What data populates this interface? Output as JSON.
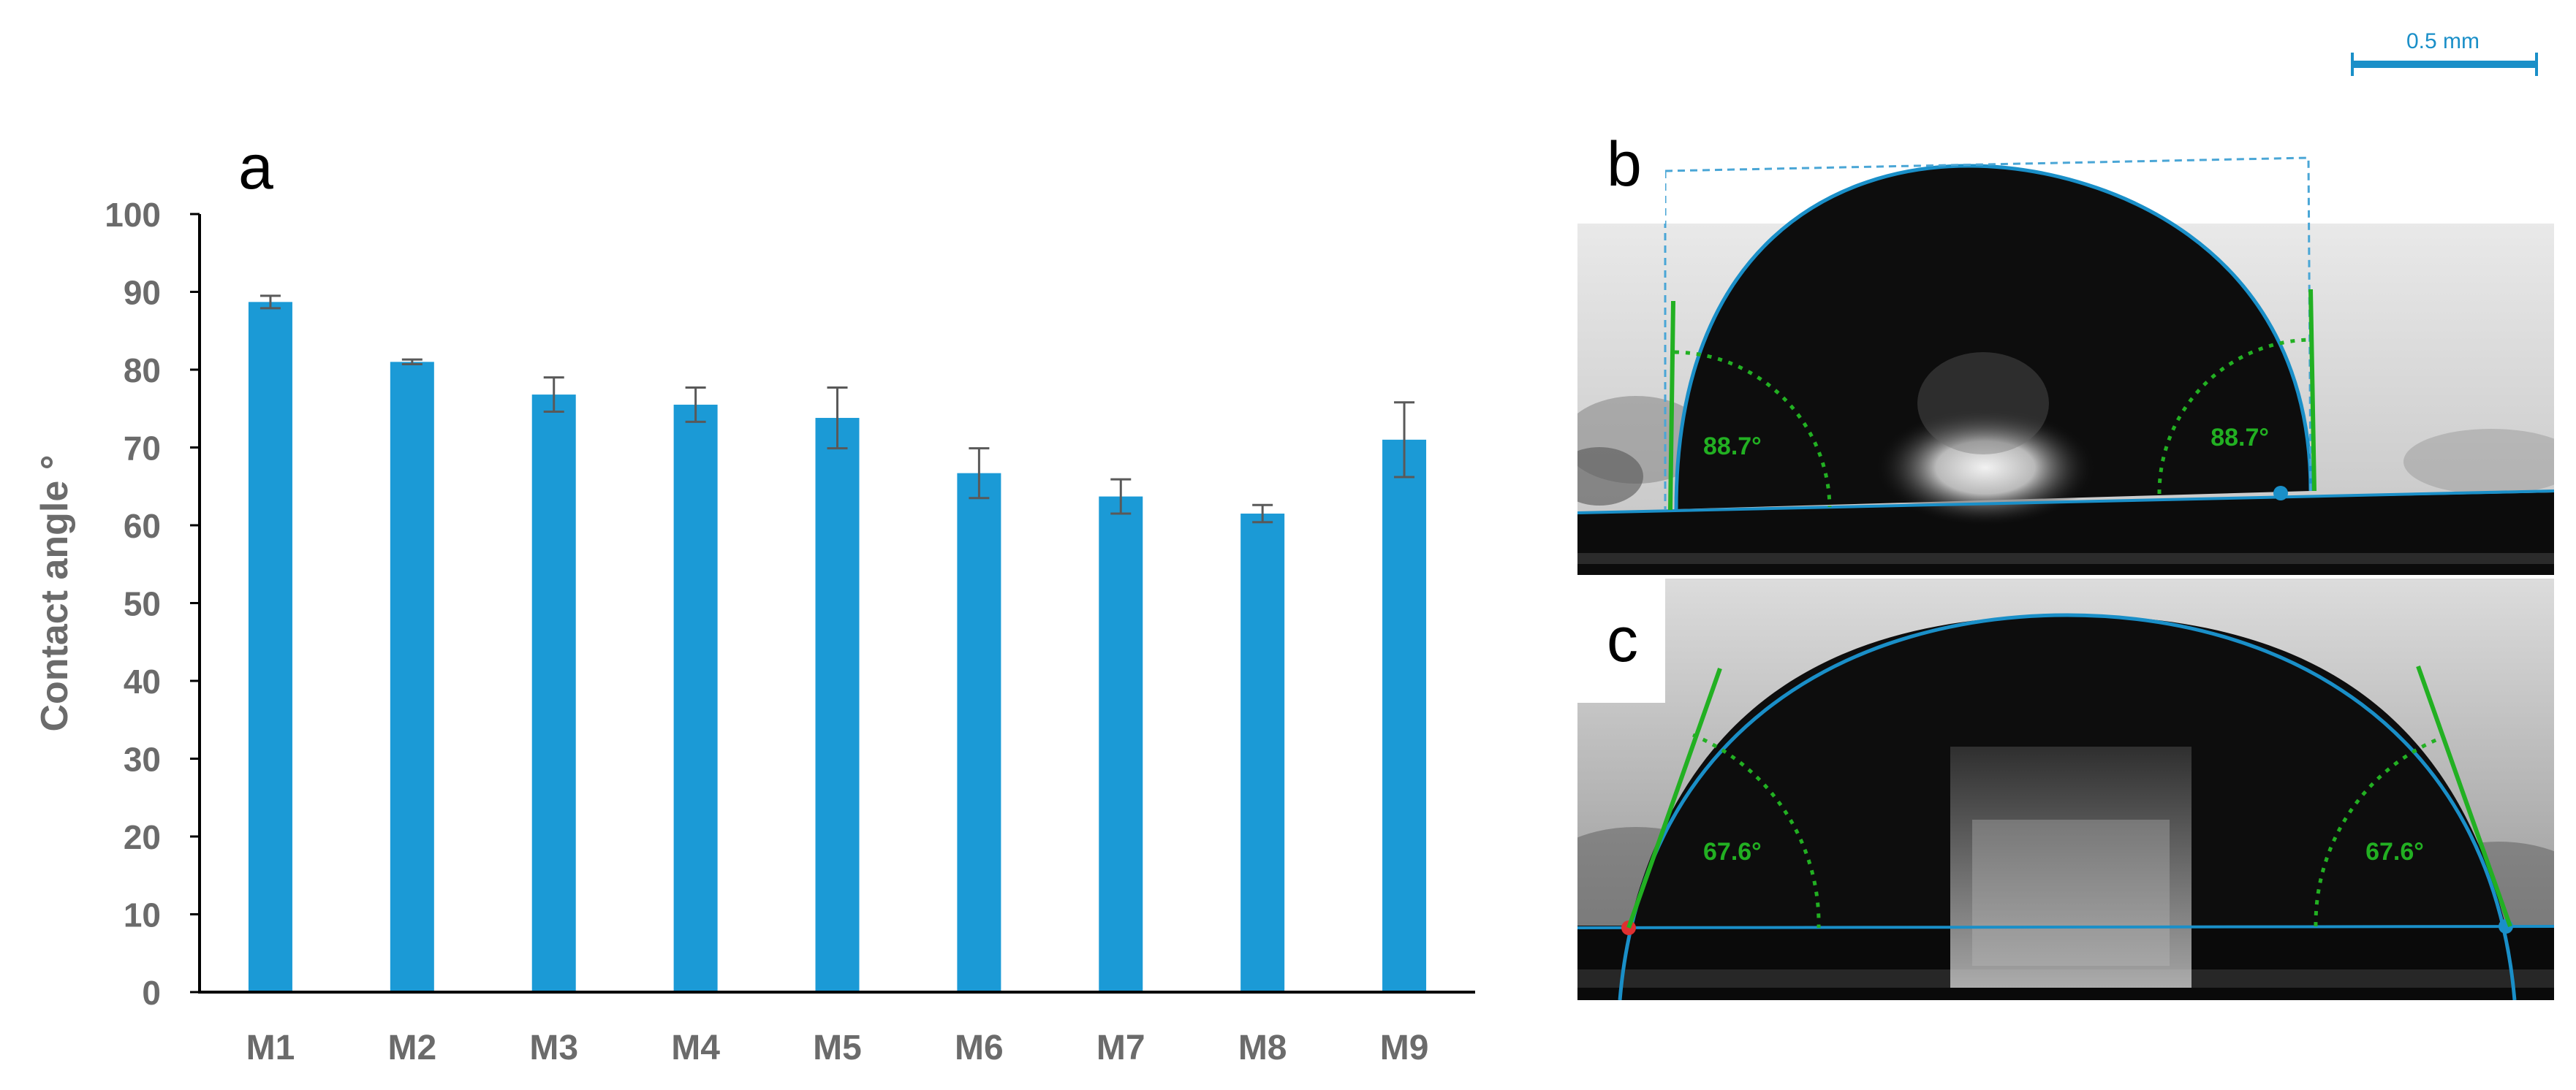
{
  "panel_labels": {
    "a": "a",
    "b": "b",
    "c": "c"
  },
  "scale_bar": {
    "label": "0.5 mm"
  },
  "colors": {
    "bar": "#1b9ad6",
    "axis": "#000000",
    "tick_text": "#6b6b6b",
    "error_bar": "#595959",
    "angle_line": "#22b022",
    "fit_line": "#1a8fc8"
  },
  "chart_data": {
    "type": "bar",
    "title": "",
    "xlabel": "",
    "ylabel": "Contact angle °",
    "ylim": [
      0,
      100
    ],
    "yticks": [
      0,
      10,
      20,
      30,
      40,
      50,
      60,
      70,
      80,
      90,
      100
    ],
    "categories": [
      "M1",
      "M2",
      "M3",
      "M4",
      "M5",
      "M6",
      "M7",
      "M8",
      "M9"
    ],
    "values": [
      88.7,
      81.0,
      76.8,
      75.5,
      73.8,
      66.7,
      63.7,
      61.5,
      71.0
    ],
    "errors": [
      0.8,
      0.3,
      2.2,
      2.2,
      3.9,
      3.2,
      2.2,
      1.1,
      4.8
    ],
    "grid": false,
    "legend": "none"
  },
  "droplet_b": {
    "left_angle": "88.7°",
    "right_angle": "88.7°"
  },
  "droplet_c": {
    "left_angle": "67.6°",
    "right_angle": "67.6°"
  }
}
